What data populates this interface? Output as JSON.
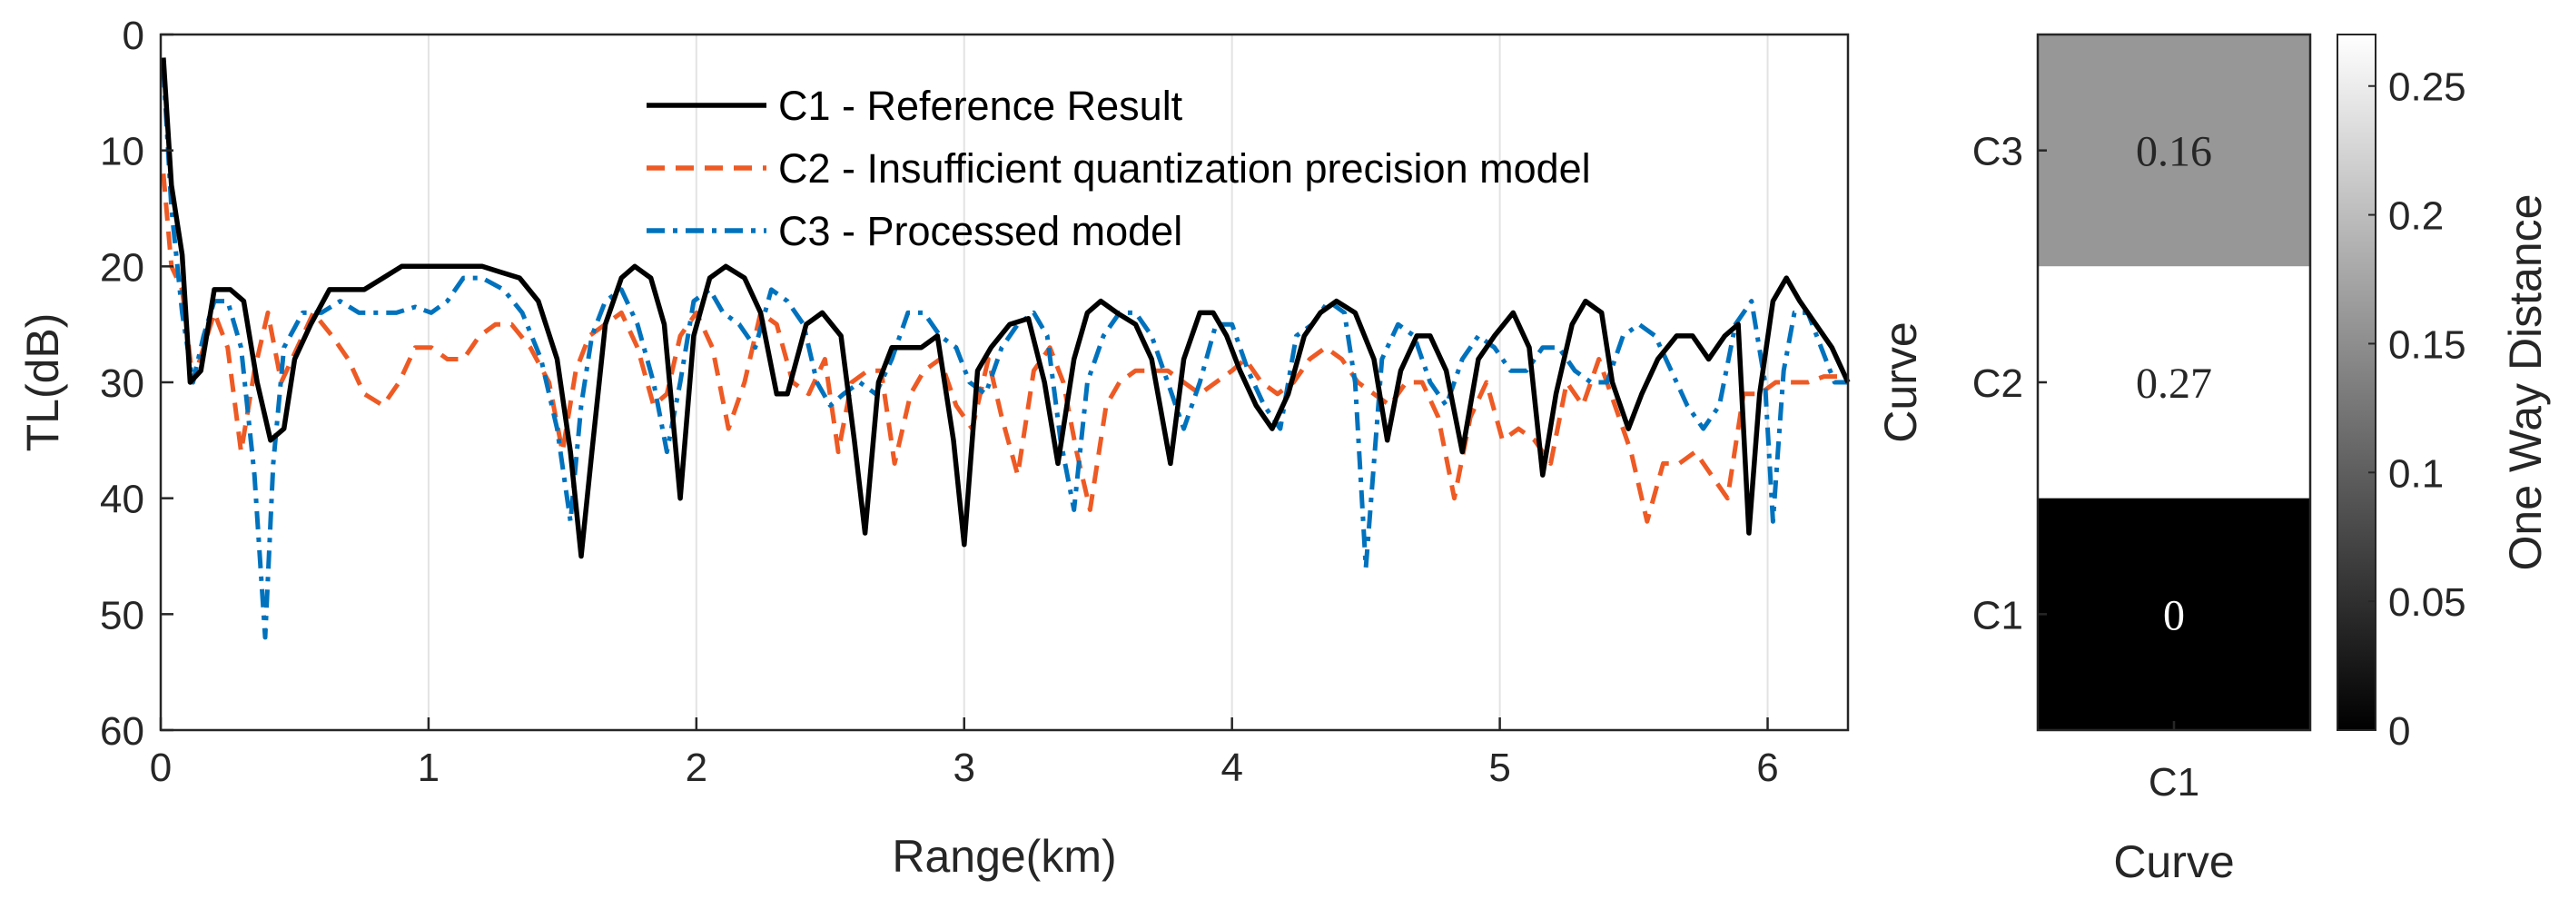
{
  "chart_data": [
    {
      "type": "line",
      "xlabel": "Range(km)",
      "ylabel": "TL(dB)",
      "xlim": [
        0,
        6.3
      ],
      "ylim": [
        0,
        60
      ],
      "y_reversed": true,
      "grid": "vertical",
      "xticks": [
        "0",
        "1",
        "2",
        "3",
        "4",
        "5",
        "6"
      ],
      "yticks": [
        "0",
        "10",
        "20",
        "30",
        "40",
        "50",
        "60"
      ],
      "legend_position": "top-center",
      "series": [
        {
          "name": "C1 - Reference Result",
          "color": "#000000",
          "style": "solid",
          "x": [
            0.01,
            0.04,
            0.08,
            0.11,
            0.15,
            0.2,
            0.26,
            0.31,
            0.36,
            0.41,
            0.46,
            0.5,
            0.56,
            0.63,
            0.69,
            0.76,
            0.83,
            0.9,
            0.97,
            1.04,
            1.12,
            1.2,
            1.27,
            1.34,
            1.41,
            1.48,
            1.53,
            1.57,
            1.61,
            1.66,
            1.72,
            1.77,
            1.83,
            1.88,
            1.94,
            1.99,
            2.05,
            2.11,
            2.18,
            2.24,
            2.3,
            2.34,
            2.41,
            2.47,
            2.54,
            2.59,
            2.63,
            2.68,
            2.73,
            2.78,
            2.84,
            2.9,
            2.96,
            3.0,
            3.05,
            3.1,
            3.17,
            3.24,
            3.3,
            3.35,
            3.41,
            3.46,
            3.51,
            3.57,
            3.64,
            3.7,
            3.77,
            3.82,
            3.88,
            3.93,
            3.98,
            4.03,
            4.09,
            4.15,
            4.21,
            4.27,
            4.33,
            4.39,
            4.46,
            4.53,
            4.58,
            4.63,
            4.69,
            4.74,
            4.8,
            4.86,
            4.92,
            4.98,
            5.05,
            5.11,
            5.16,
            5.21,
            5.27,
            5.32,
            5.38,
            5.42,
            5.48,
            5.53,
            5.59,
            5.66,
            5.72,
            5.78,
            5.84,
            5.89,
            5.93,
            5.97,
            6.02,
            6.07,
            6.12,
            6.18,
            6.24,
            6.3
          ],
          "y": [
            2,
            13,
            19,
            30,
            29,
            22,
            22,
            23,
            30,
            35,
            34,
            28,
            25,
            22,
            22,
            22,
            21,
            20,
            20,
            20,
            20,
            20,
            20.5,
            21,
            23,
            28,
            36,
            45,
            36,
            25,
            21,
            20,
            21,
            25,
            40,
            26,
            21,
            20,
            21,
            24,
            31,
            31,
            25,
            24,
            26,
            35,
            43,
            30,
            27,
            27,
            27,
            26,
            35,
            44,
            29,
            27,
            25,
            24.5,
            30,
            37,
            28,
            24,
            23,
            24,
            25,
            28,
            37,
            28,
            24,
            24,
            26,
            29,
            32,
            34,
            31,
            26,
            24,
            23,
            24,
            28,
            35,
            29,
            26,
            26,
            29,
            36,
            28,
            26,
            24,
            27,
            38,
            31,
            25,
            23,
            24,
            30,
            34,
            31,
            28,
            26,
            26,
            28,
            26,
            25,
            43,
            31,
            23,
            21,
            23,
            25,
            27,
            30
          ]
        },
        {
          "name": "C2 - Insufficient quantization precision model",
          "color": "#EE5A24",
          "style": "dashed",
          "x": [
            0.01,
            0.04,
            0.08,
            0.12,
            0.16,
            0.2,
            0.25,
            0.3,
            0.35,
            0.4,
            0.45,
            0.51,
            0.57,
            0.64,
            0.7,
            0.76,
            0.83,
            0.89,
            0.95,
            1.01,
            1.07,
            1.13,
            1.19,
            1.25,
            1.31,
            1.38,
            1.45,
            1.5,
            1.55,
            1.6,
            1.66,
            1.72,
            1.78,
            1.84,
            1.89,
            1.94,
            2.0,
            2.06,
            2.12,
            2.18,
            2.24,
            2.3,
            2.36,
            2.42,
            2.48,
            2.53,
            2.58,
            2.64,
            2.69,
            2.74,
            2.8,
            2.85,
            2.91,
            2.97,
            3.03,
            3.09,
            3.14,
            3.2,
            3.26,
            3.32,
            3.37,
            3.42,
            3.47,
            3.53,
            3.58,
            3.64,
            3.7,
            3.76,
            3.82,
            3.88,
            3.94,
            4.0,
            4.05,
            4.11,
            4.17,
            4.23,
            4.29,
            4.35,
            4.41,
            4.47,
            4.53,
            4.59,
            4.65,
            4.71,
            4.77,
            4.83,
            4.89,
            4.95,
            5.01,
            5.07,
            5.13,
            5.19,
            5.25,
            5.31,
            5.37,
            5.43,
            5.49,
            5.55,
            5.61,
            5.67,
            5.73,
            5.79,
            5.85,
            5.91,
            5.97,
            6.03,
            6.09,
            6.15,
            6.21,
            6.27
          ],
          "y": [
            12,
            20,
            22,
            30,
            27,
            24,
            27,
            36,
            29,
            24,
            30,
            27,
            24,
            26,
            28,
            31,
            32,
            30,
            27,
            27,
            28,
            28,
            26,
            25,
            25,
            27,
            30,
            36,
            29,
            26,
            25,
            24,
            27,
            32,
            31,
            26,
            24,
            27,
            34,
            30,
            24,
            25,
            30,
            31,
            28,
            36,
            30,
            29,
            29,
            37,
            31,
            29,
            28,
            32,
            34,
            28,
            33,
            38,
            29,
            27,
            30,
            36,
            41,
            32,
            30,
            29,
            29,
            29,
            30,
            31,
            30,
            29,
            28,
            30,
            31,
            30,
            28,
            27,
            28,
            30,
            31,
            32,
            30,
            30,
            33,
            40,
            33,
            30,
            35,
            34,
            35,
            37,
            30,
            32,
            28,
            32,
            36,
            42,
            37,
            37,
            36,
            38,
            40,
            31,
            31,
            30,
            30,
            30,
            29.5,
            29.5
          ]
        },
        {
          "name": "C3 - Processed model",
          "color": "#0072BD",
          "style": "dash-dot",
          "x": [
            0.01,
            0.04,
            0.08,
            0.12,
            0.16,
            0.2,
            0.25,
            0.3,
            0.35,
            0.39,
            0.42,
            0.46,
            0.53,
            0.6,
            0.67,
            0.74,
            0.81,
            0.88,
            0.95,
            1.01,
            1.07,
            1.13,
            1.2,
            1.28,
            1.35,
            1.42,
            1.48,
            1.53,
            1.57,
            1.61,
            1.66,
            1.72,
            1.78,
            1.84,
            1.89,
            1.94,
            1.99,
            2.05,
            2.1,
            2.16,
            2.22,
            2.28,
            2.34,
            2.4,
            2.45,
            2.5,
            2.55,
            2.61,
            2.67,
            2.73,
            2.79,
            2.85,
            2.91,
            2.97,
            3.02,
            3.08,
            3.14,
            3.2,
            3.26,
            3.31,
            3.36,
            3.41,
            3.46,
            3.52,
            3.58,
            3.64,
            3.7,
            3.76,
            3.82,
            3.88,
            3.94,
            4.0,
            4.06,
            4.12,
            4.18,
            4.24,
            4.3,
            4.36,
            4.42,
            4.46,
            4.5,
            4.56,
            4.62,
            4.68,
            4.74,
            4.8,
            4.86,
            4.92,
            4.98,
            5.04,
            5.1,
            5.16,
            5.22,
            5.28,
            5.34,
            5.4,
            5.46,
            5.52,
            5.58,
            5.64,
            5.7,
            5.76,
            5.82,
            5.88,
            5.94,
            5.99,
            6.02,
            6.06,
            6.1,
            6.15,
            6.2,
            6.25,
            6.3
          ],
          "y": [
            3,
            15,
            24,
            30,
            26,
            23,
            23,
            27,
            38,
            52,
            37,
            27,
            24,
            24,
            23,
            24,
            24,
            24,
            23.5,
            24,
            23,
            21,
            21,
            22,
            24,
            28,
            34,
            42,
            32,
            26,
            23,
            22,
            25,
            30,
            36,
            30,
            23,
            22,
            24,
            25,
            27,
            22,
            23,
            25,
            30,
            32,
            31,
            30,
            31,
            28,
            24,
            24,
            26,
            27,
            30,
            31,
            27,
            25,
            24,
            26,
            35,
            41,
            30,
            26,
            24,
            24,
            26,
            30,
            34,
            30,
            25,
            25,
            29,
            32,
            34,
            26,
            25,
            23,
            24,
            30,
            46,
            28,
            25,
            26,
            30,
            32,
            28,
            26,
            27,
            29,
            29,
            27,
            27,
            29,
            30,
            30,
            26,
            25,
            26,
            29,
            32,
            34,
            32,
            25,
            23,
            30,
            42,
            29,
            24,
            24,
            27,
            30,
            30
          ]
        }
      ]
    },
    {
      "type": "heatmap",
      "xlabel": "Curve",
      "ylabel": "Curve",
      "x_categories": [
        "C1"
      ],
      "y_categories": [
        "C3",
        "C2",
        "C1"
      ],
      "values": [
        0.16,
        0.27,
        0
      ],
      "value_labels": [
        "0.16",
        "0.27",
        "0"
      ],
      "colorscale": "gray",
      "colorbar": {
        "label": "One Way Distance",
        "range": [
          0,
          0.27
        ],
        "ticks": [
          0,
          0.05,
          0.1,
          0.15,
          0.2,
          0.25
        ],
        "tick_labels": [
          "0",
          "0.05",
          "0.1",
          "0.15",
          "0.2",
          "0.25"
        ]
      }
    }
  ]
}
